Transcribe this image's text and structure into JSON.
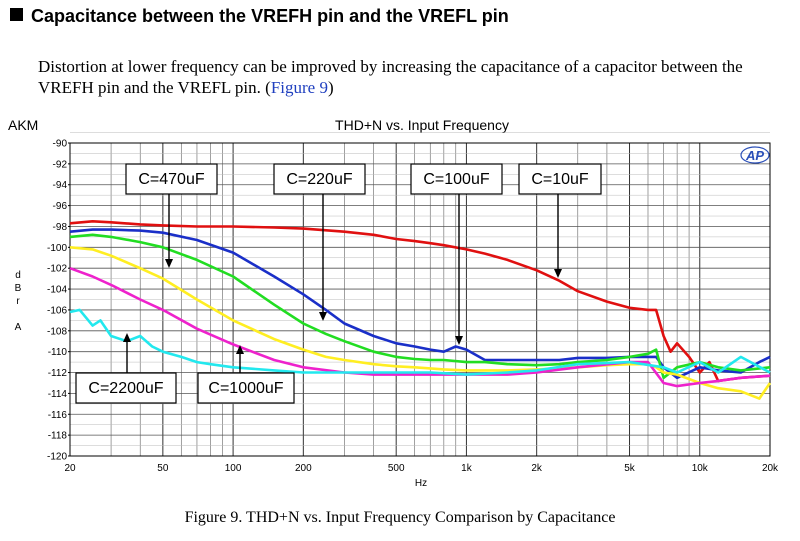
{
  "section": {
    "heading": "Capacitance between the VREFH pin and the VREFL pin"
  },
  "paragraph": {
    "text": "Distortion at lower frequency can be improved by increasing the capacitance of a capacitor between the VREFH pin and the VREFL pin. (",
    "link": "Figure 9",
    "close": ")"
  },
  "caption": "Figure 9. THD+N vs. Input Frequency Comparison by Capacitance",
  "chart_data": {
    "type": "line",
    "title": "THD+N vs. Input Frequency",
    "brand": "AKM",
    "logo": "AP",
    "xlabel": "Hz",
    "ylabel": "dBrA",
    "ylabel_chars": [
      "d",
      "B",
      "r",
      "",
      "A"
    ],
    "xscale": "log",
    "xlim": [
      20,
      20000
    ],
    "ylim": [
      -120,
      -90
    ],
    "xticks": [
      {
        "v": 20,
        "label": "20"
      },
      {
        "v": 50,
        "label": "50"
      },
      {
        "v": 100,
        "label": "100"
      },
      {
        "v": 200,
        "label": "200"
      },
      {
        "v": 500,
        "label": "500"
      },
      {
        "v": 1000,
        "label": "1k"
      },
      {
        "v": 2000,
        "label": "2k"
      },
      {
        "v": 5000,
        "label": "5k"
      },
      {
        "v": 10000,
        "label": "10k"
      },
      {
        "v": 20000,
        "label": "20k"
      }
    ],
    "yticks": [
      -90,
      -92,
      -94,
      -96,
      -98,
      -100,
      -102,
      -104,
      -106,
      -108,
      -110,
      -112,
      -114,
      -116,
      -118,
      -120
    ],
    "grid": true,
    "series": [
      {
        "name": "C=10uF",
        "color": "#e01010",
        "x": [
          20,
          25,
          30,
          40,
          50,
          70,
          100,
          150,
          200,
          300,
          400,
          500,
          600,
          700,
          800,
          1000,
          1200,
          1500,
          2000,
          2500,
          3000,
          4000,
          5000,
          6000,
          6500,
          7000,
          7500,
          8000,
          9000,
          10000,
          11000,
          12000,
          15000,
          20000
        ],
        "y": [
          -97.7,
          -97.5,
          -97.6,
          -97.8,
          -97.9,
          -98,
          -98,
          -98.1,
          -98.2,
          -98.5,
          -98.8,
          -99.2,
          -99.4,
          -99.6,
          -99.8,
          -100.2,
          -100.6,
          -101.2,
          -102.2,
          -103.2,
          -104.2,
          -105.2,
          -105.8,
          -106,
          -106,
          -108.5,
          -110,
          -109.2,
          -110.5,
          -112,
          -111,
          -112.8,
          -112.5,
          -112.3
        ]
      },
      {
        "name": "C=100uF",
        "color": "#1a2fc8",
        "x": [
          20,
          25,
          30,
          40,
          50,
          70,
          100,
          150,
          200,
          250,
          300,
          400,
          500,
          600,
          700,
          800,
          900,
          1000,
          1200,
          1500,
          2000,
          2500,
          3000,
          4000,
          5000,
          6000,
          6500,
          7000,
          8000,
          10000,
          12000,
          15000,
          18000,
          20000
        ],
        "y": [
          -98.5,
          -98.3,
          -98.3,
          -98.4,
          -98.6,
          -99.3,
          -100.5,
          -102.8,
          -104.5,
          -106,
          -107.3,
          -108.5,
          -109.2,
          -109.5,
          -109.8,
          -110,
          -109.5,
          -109.8,
          -110.8,
          -110.8,
          -110.8,
          -110.8,
          -110.6,
          -110.6,
          -110.5,
          -110.5,
          -110.5,
          -111.5,
          -112.5,
          -111.5,
          -111.8,
          -112,
          -111,
          -110.5
        ]
      },
      {
        "name": "C=220uF",
        "color": "#22dd22",
        "x": [
          20,
          25,
          30,
          40,
          50,
          70,
          100,
          150,
          200,
          250,
          300,
          400,
          500,
          600,
          700,
          800,
          1000,
          1200,
          1500,
          2000,
          2500,
          3000,
          4000,
          5000,
          6000,
          6500,
          7000,
          8000,
          10000,
          12000,
          15000,
          20000
        ],
        "y": [
          -99,
          -98.8,
          -99,
          -99.5,
          -100,
          -101.2,
          -102.8,
          -105.5,
          -107.3,
          -108.3,
          -109,
          -110,
          -110.5,
          -110.7,
          -110.8,
          -110.8,
          -111,
          -111,
          -111.2,
          -111.3,
          -111.2,
          -111,
          -110.8,
          -110.5,
          -110.2,
          -109.8,
          -112.5,
          -111.5,
          -111,
          -111.5,
          -111.8,
          -111.5
        ]
      },
      {
        "name": "C=470uF",
        "color": "#ffee22",
        "x": [
          20,
          25,
          30,
          40,
          50,
          70,
          100,
          150,
          200,
          250,
          300,
          400,
          500,
          600,
          700,
          800,
          1000,
          1200,
          1500,
          2000,
          2500,
          3000,
          4000,
          5000,
          6000,
          6500,
          7000,
          8000,
          10000,
          12000,
          15000,
          18000,
          20000
        ],
        "y": [
          -100,
          -100.2,
          -100.8,
          -102,
          -103,
          -105,
          -107,
          -108.8,
          -109.8,
          -110.5,
          -110.8,
          -111.2,
          -111.4,
          -111.5,
          -111.6,
          -111.7,
          -111.8,
          -111.8,
          -111.8,
          -111.7,
          -111.6,
          -111.5,
          -111.3,
          -111.2,
          -111.2,
          -111.5,
          -112,
          -112.2,
          -113,
          -113.5,
          -113.8,
          -114.5,
          -113
        ]
      },
      {
        "name": "C=1000uF",
        "color": "#ee22cc",
        "x": [
          20,
          25,
          30,
          40,
          50,
          70,
          100,
          150,
          200,
          300,
          400,
          500,
          700,
          1000,
          1500,
          2000,
          3000,
          5000,
          6000,
          7000,
          8000,
          10000,
          12000,
          15000,
          20000
        ],
        "y": [
          -102,
          -102.8,
          -103.6,
          -105,
          -106,
          -107.8,
          -109.3,
          -110.8,
          -111.5,
          -112,
          -112.2,
          -112.2,
          -112.2,
          -112.2,
          -112.2,
          -112,
          -111.5,
          -111,
          -111,
          -113,
          -113.3,
          -113,
          -112.8,
          -112.5,
          -112.3
        ]
      },
      {
        "name": "C=2200uF",
        "color": "#22e8ee",
        "x": [
          20,
          22,
          25,
          27,
          30,
          35,
          40,
          45,
          50,
          60,
          70,
          80,
          100,
          150,
          200,
          300,
          500,
          700,
          1000,
          1500,
          2000,
          3000,
          5000,
          7000,
          8000,
          10000,
          12000,
          15000,
          20000
        ],
        "y": [
          -106.2,
          -106,
          -107.5,
          -107,
          -108.5,
          -109,
          -108.5,
          -109.5,
          -110,
          -110.5,
          -111,
          -111.2,
          -111.5,
          -111.8,
          -112,
          -112,
          -112,
          -112,
          -112.2,
          -112,
          -111.8,
          -111.2,
          -111,
          -111.5,
          -112,
          -111,
          -112,
          -110.5,
          -112
        ]
      }
    ],
    "annotations": [
      {
        "label": "C=470uF",
        "series": "C=470uF"
      },
      {
        "label": "C=220uF",
        "series": "C=220uF"
      },
      {
        "label": "C=100uF",
        "series": "C=100uF"
      },
      {
        "label": "C=10uF",
        "series": "C=10uF"
      },
      {
        "label": "C=2200uF",
        "series": "C=2200uF"
      },
      {
        "label": "C=1000uF",
        "series": "C=1000uF"
      }
    ]
  }
}
